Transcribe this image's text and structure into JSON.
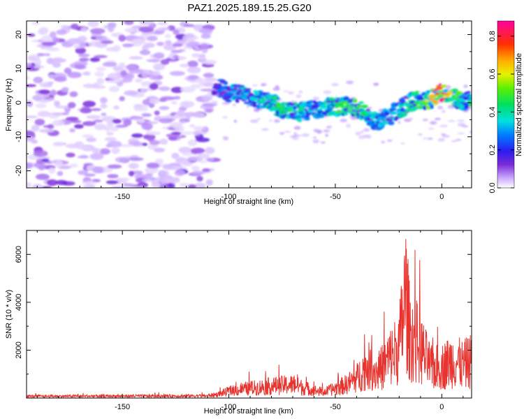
{
  "title": "PAZ1.2025.189.15.25.G20",
  "chart_data": [
    {
      "type": "heatmap",
      "xlabel": "Height of straight line (km)",
      "ylabel": "Frequency (Hz)",
      "xlim": [
        -195,
        14
      ],
      "ylim": [
        -25,
        24
      ],
      "xticks": [
        -150,
        -100,
        -50,
        0
      ],
      "yticks": [
        -20,
        -10,
        0,
        10,
        20
      ],
      "colorbar": {
        "label": "Normalized spectral amplitude",
        "range": [
          0,
          0.88
        ],
        "ticks": [
          0.0,
          0.2,
          0.4,
          0.6,
          0.8
        ]
      },
      "noise_region_x": [
        -195,
        -107
      ],
      "ridge": {
        "x": [
          -107,
          -100,
          -90,
          -80,
          -75,
          -68,
          -60,
          -52,
          -45,
          -40,
          -35,
          -30,
          -25,
          -20,
          -15,
          -10,
          -5,
          0,
          5,
          10,
          14
        ],
        "frequency": [
          5,
          3,
          2,
          0,
          -2,
          -3,
          -2,
          -1,
          -1,
          -2,
          -3,
          -6,
          -4,
          -2,
          0,
          1,
          1,
          3,
          2,
          0,
          1
        ],
        "amplitude": [
          0.2,
          0.3,
          0.35,
          0.4,
          0.45,
          0.4,
          0.35,
          0.4,
          0.45,
          0.45,
          0.4,
          0.35,
          0.3,
          0.35,
          0.4,
          0.5,
          0.6,
          0.85,
          0.5,
          0.45,
          0.4
        ]
      }
    },
    {
      "type": "line",
      "xlabel": "Height of straight line (km)",
      "ylabel": "SNR (10 * v/v)",
      "xlim": [
        -195,
        14
      ],
      "ylim": [
        0,
        7000
      ],
      "xticks": [
        -150,
        -100,
        -50,
        0
      ],
      "yticks": [
        2000,
        4000,
        6000
      ],
      "series": [
        {
          "color": "#e8332e",
          "envelope_x": [
            -195,
            -150,
            -110,
            -105,
            -100,
            -90,
            -80,
            -70,
            -60,
            -55,
            -45,
            -40,
            -35,
            -30,
            -25,
            -20,
            -17,
            -15,
            -12,
            -10,
            -5,
            0,
            5,
            10,
            14
          ],
          "envelope_y": [
            120,
            130,
            150,
            250,
            450,
            650,
            800,
            900,
            500,
            400,
            900,
            1300,
            2200,
            1700,
            2600,
            3400,
            6900,
            4200,
            3800,
            3300,
            2000,
            2100,
            2500,
            2200,
            2500
          ]
        }
      ]
    }
  ]
}
